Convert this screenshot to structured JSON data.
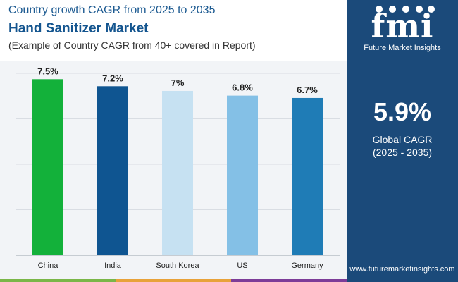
{
  "header": {
    "supertitle": "Country growth CAGR from 2025 to 2035",
    "title": "Hand Sanitizer Market",
    "subtitle": "(Example of Country CAGR from 40+ covered in Report)"
  },
  "sidebar": {
    "logo_text": "fmi",
    "logo_subtext": "Future Market Insights",
    "metric_value": "5.9%",
    "metric_label": "Global CAGR",
    "metric_period": "(2025 - 2035)",
    "website": "www.futuremarketinsights.com",
    "background_color": "#1b4a7a"
  },
  "chart_data": {
    "type": "bar",
    "categories": [
      "China",
      "India",
      "South Korea",
      "US",
      "Germany"
    ],
    "values": [
      7.5,
      7.2,
      7.0,
      6.8,
      6.7
    ],
    "value_labels": [
      "7.5%",
      "7.2%",
      "7%",
      "6.8%",
      "6.7%"
    ],
    "bar_colors": [
      "#13b13a",
      "#0f5591",
      "#c6e1f2",
      "#84c0e6",
      "#1f7cb6"
    ],
    "title": "",
    "xlabel": "",
    "ylabel": "",
    "ylim": [
      0,
      7.75
    ],
    "grid": true
  },
  "footer_colors": [
    "#7ab648",
    "#e8a23a",
    "#7d3c98"
  ]
}
